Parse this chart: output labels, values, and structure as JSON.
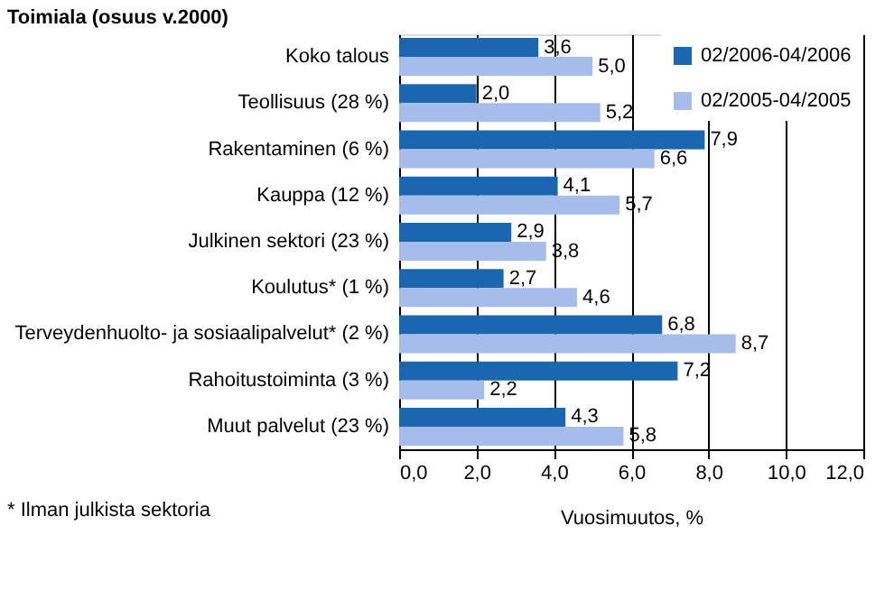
{
  "chart_data": {
    "type": "bar",
    "orientation": "horizontal",
    "title": "Toimiala (osuus v.2000)",
    "xlabel": "Vuosimuutos, %",
    "categories": [
      "Koko talous",
      "Teollisuus (28 %)",
      "Rakentaminen (6 %)",
      "Kauppa (12 %)",
      "Julkinen sektori (23 %)",
      "Koulutus* (1 %)",
      "Terveydenhuolto- ja sosiaalipalvelut* (2 %)",
      "Rahoitustoiminta (3 %)",
      "Muut palvelut (23 %)"
    ],
    "series": [
      {
        "name": "02/2006-04/2006",
        "color": "#1a67b0",
        "values": [
          3.6,
          2.0,
          7.9,
          4.1,
          2.9,
          2.7,
          6.8,
          7.2,
          4.3
        ],
        "value_labels": [
          "3,6",
          "2,0",
          "7,9",
          "4,1",
          "2,9",
          "2,7",
          "6,8",
          "7,2",
          "4,3"
        ]
      },
      {
        "name": "02/2005-04/2005",
        "color": "#a6bcea",
        "values": [
          5.0,
          5.2,
          6.6,
          5.7,
          3.8,
          4.6,
          8.7,
          2.2,
          5.8
        ],
        "value_labels": [
          "5,0",
          "5,2",
          "6,6",
          "5,7",
          "3,8",
          "4,6",
          "8,7",
          "2,2",
          "5,8"
        ]
      }
    ],
    "xlim": [
      0,
      12
    ],
    "xticks": [
      {
        "value": 0,
        "label": "0,0"
      },
      {
        "value": 2,
        "label": "2,0"
      },
      {
        "value": 4,
        "label": "4,0"
      },
      {
        "value": 6,
        "label": "6,0"
      },
      {
        "value": 8,
        "label": "8,0"
      },
      {
        "value": 10,
        "label": "10,0"
      },
      {
        "value": 12,
        "label": "12,0"
      }
    ],
    "grid": "x",
    "legend": "top right",
    "annotations": [
      "* Ilman julkista sektoria"
    ]
  }
}
